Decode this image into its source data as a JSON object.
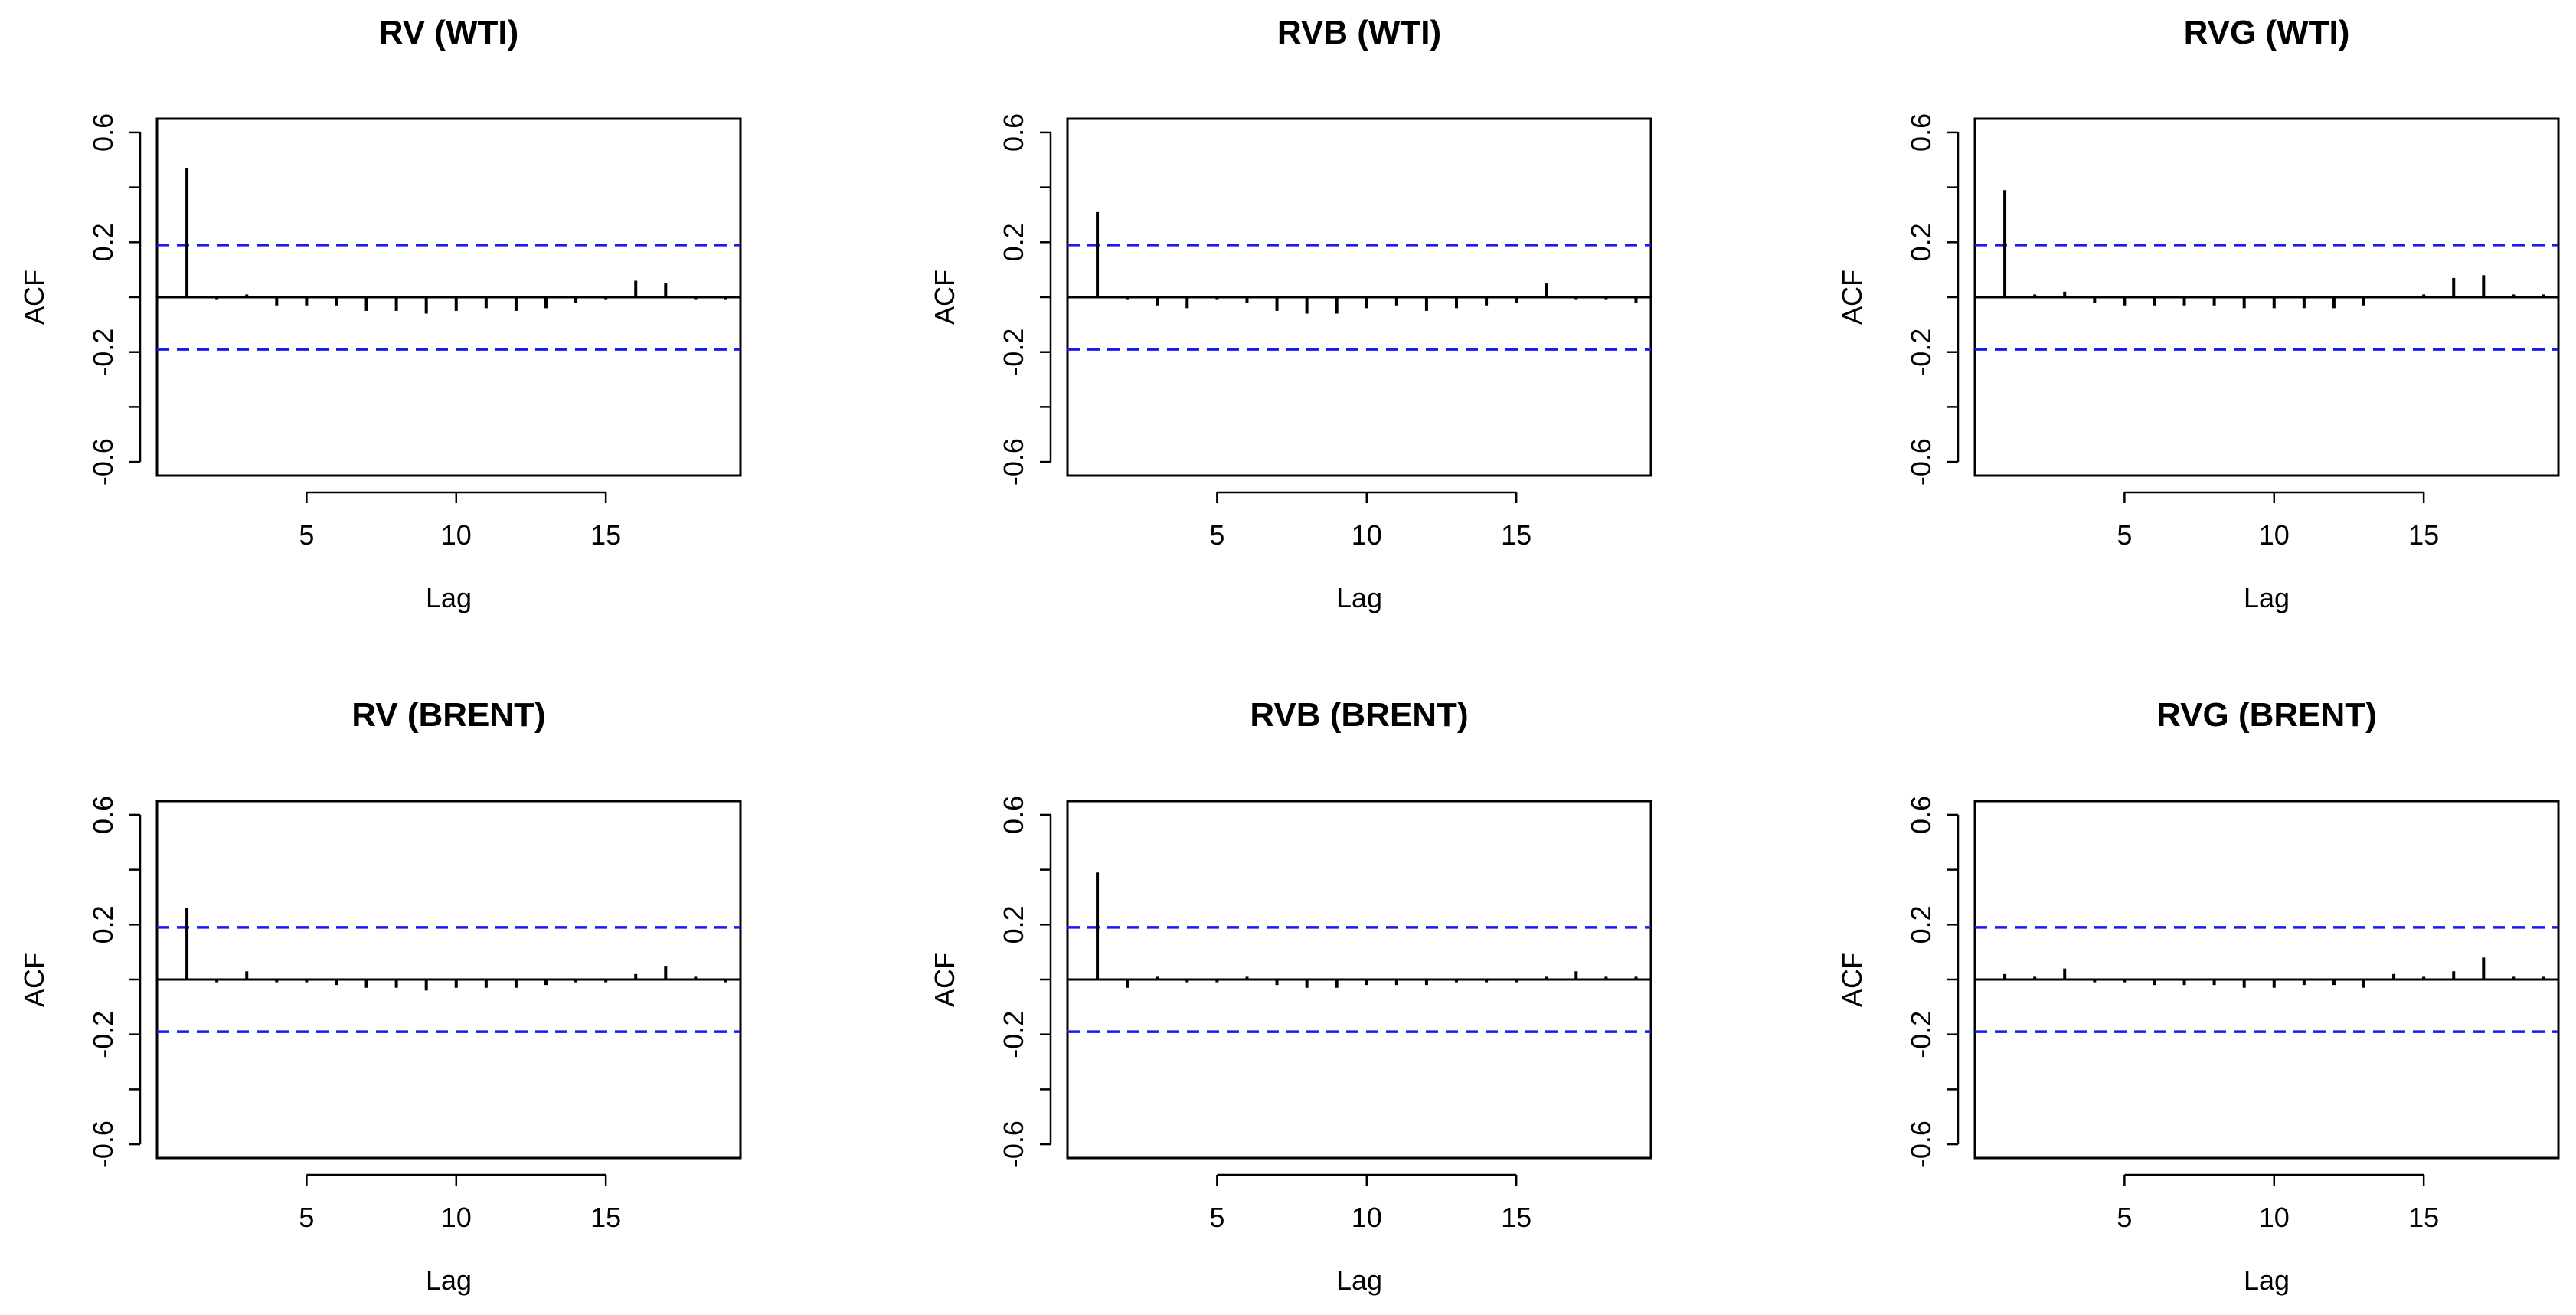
{
  "chart_data": [
    {
      "type": "bar",
      "title": "RV (WTI)",
      "xlabel": "Lag",
      "ylabel": "ACF",
      "xlim": [
        0,
        19.5
      ],
      "ylim": [
        -0.65,
        0.65
      ],
      "xticks": [
        5,
        10,
        15
      ],
      "yticks": [
        -0.6,
        -0.2,
        0.2,
        0.6
      ],
      "ci_upper": 0.19,
      "ci_lower": -0.19,
      "lags": [
        1,
        2,
        3,
        4,
        5,
        6,
        7,
        8,
        9,
        10,
        11,
        12,
        13,
        14,
        15,
        16,
        17,
        18,
        19
      ],
      "values": [
        0.47,
        -0.01,
        0.01,
        -0.03,
        -0.03,
        -0.03,
        -0.05,
        -0.05,
        -0.06,
        -0.05,
        -0.04,
        -0.05,
        -0.04,
        -0.02,
        -0.01,
        0.06,
        0.05,
        -0.01,
        -0.01
      ]
    },
    {
      "type": "bar",
      "title": "RVB (WTI)",
      "xlabel": "Lag",
      "ylabel": "ACF",
      "xlim": [
        0,
        19.5
      ],
      "ylim": [
        -0.65,
        0.65
      ],
      "xticks": [
        5,
        10,
        15
      ],
      "yticks": [
        -0.6,
        -0.2,
        0.2,
        0.6
      ],
      "ci_upper": 0.19,
      "ci_lower": -0.19,
      "lags": [
        1,
        2,
        3,
        4,
        5,
        6,
        7,
        8,
        9,
        10,
        11,
        12,
        13,
        14,
        15,
        16,
        17,
        18,
        19
      ],
      "values": [
        0.31,
        -0.01,
        -0.03,
        -0.04,
        -0.01,
        -0.02,
        -0.05,
        -0.06,
        -0.06,
        -0.04,
        -0.03,
        -0.05,
        -0.04,
        -0.03,
        -0.02,
        0.05,
        -0.01,
        -0.01,
        -0.02
      ]
    },
    {
      "type": "bar",
      "title": "RVG (WTI)",
      "xlabel": "Lag",
      "ylabel": "ACF",
      "xlim": [
        0,
        19.5
      ],
      "ylim": [
        -0.65,
        0.65
      ],
      "xticks": [
        5,
        10,
        15
      ],
      "yticks": [
        -0.6,
        -0.2,
        0.2,
        0.6
      ],
      "ci_upper": 0.19,
      "ci_lower": -0.19,
      "lags": [
        1,
        2,
        3,
        4,
        5,
        6,
        7,
        8,
        9,
        10,
        11,
        12,
        13,
        14,
        15,
        16,
        17,
        18,
        19
      ],
      "values": [
        0.39,
        0.01,
        0.02,
        -0.02,
        -0.03,
        -0.03,
        -0.03,
        -0.03,
        -0.04,
        -0.04,
        -0.04,
        -0.04,
        -0.03,
        0.0,
        0.01,
        0.07,
        0.08,
        0.01,
        0.01
      ]
    },
    {
      "type": "bar",
      "title": "RV (BRENT)",
      "xlabel": "Lag",
      "ylabel": "ACF",
      "xlim": [
        0,
        19.5
      ],
      "ylim": [
        -0.65,
        0.65
      ],
      "xticks": [
        5,
        10,
        15
      ],
      "yticks": [
        -0.6,
        -0.2,
        0.2,
        0.6
      ],
      "ci_upper": 0.19,
      "ci_lower": -0.19,
      "lags": [
        1,
        2,
        3,
        4,
        5,
        6,
        7,
        8,
        9,
        10,
        11,
        12,
        13,
        14,
        15,
        16,
        17,
        18,
        19
      ],
      "values": [
        0.26,
        -0.01,
        0.03,
        -0.01,
        -0.01,
        -0.02,
        -0.03,
        -0.03,
        -0.04,
        -0.03,
        -0.03,
        -0.03,
        -0.02,
        -0.01,
        -0.01,
        0.02,
        0.05,
        0.01,
        -0.01
      ]
    },
    {
      "type": "bar",
      "title": "RVB (BRENT)",
      "xlabel": "Lag",
      "ylabel": "ACF",
      "xlim": [
        0,
        19.5
      ],
      "ylim": [
        -0.65,
        0.65
      ],
      "xticks": [
        5,
        10,
        15
      ],
      "yticks": [
        -0.6,
        -0.2,
        0.2,
        0.6
      ],
      "ci_upper": 0.19,
      "ci_lower": -0.19,
      "lags": [
        1,
        2,
        3,
        4,
        5,
        6,
        7,
        8,
        9,
        10,
        11,
        12,
        13,
        14,
        15,
        16,
        17,
        18,
        19
      ],
      "values": [
        0.39,
        -0.03,
        0.01,
        -0.01,
        -0.01,
        0.01,
        -0.02,
        -0.03,
        -0.03,
        -0.02,
        -0.02,
        -0.02,
        -0.01,
        -0.01,
        -0.01,
        0.01,
        0.03,
        0.01,
        0.01
      ]
    },
    {
      "type": "bar",
      "title": "RVG (BRENT)",
      "xlabel": "Lag",
      "ylabel": "ACF",
      "xlim": [
        0,
        19.5
      ],
      "ylim": [
        -0.65,
        0.65
      ],
      "xticks": [
        5,
        10,
        15
      ],
      "yticks": [
        -0.6,
        -0.2,
        0.2,
        0.6
      ],
      "ci_upper": 0.19,
      "ci_lower": -0.19,
      "lags": [
        1,
        2,
        3,
        4,
        5,
        6,
        7,
        8,
        9,
        10,
        11,
        12,
        13,
        14,
        15,
        16,
        17,
        18,
        19
      ],
      "values": [
        0.02,
        0.01,
        0.04,
        -0.01,
        -0.01,
        -0.02,
        -0.02,
        -0.02,
        -0.03,
        -0.03,
        -0.02,
        -0.02,
        -0.03,
        0.02,
        0.01,
        0.03,
        0.08,
        0.01,
        0.01
      ]
    }
  ],
  "colors": {
    "axes": "#000000",
    "bars": "#000000",
    "confidence_band": "#1a1aee",
    "background": "#ffffff"
  }
}
